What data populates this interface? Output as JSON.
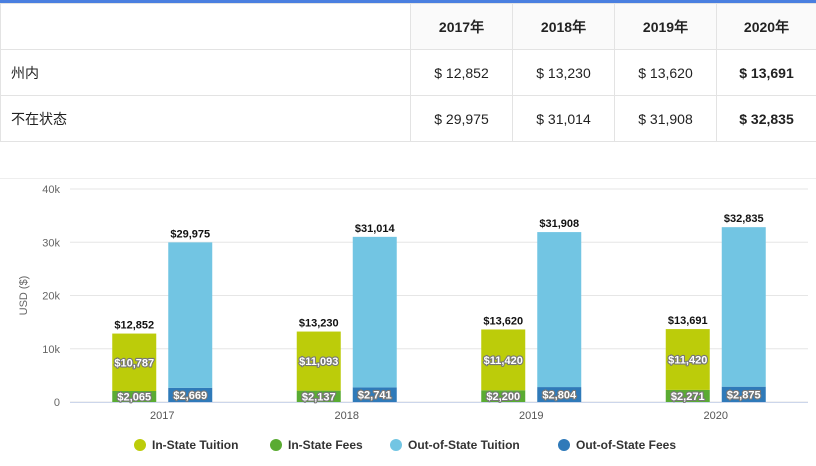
{
  "table": {
    "headers": [
      "2017年",
      "2018年",
      "2019年",
      "2020年"
    ],
    "rows": [
      {
        "label": "州内",
        "values": [
          "$ 12,852",
          "$ 13,230",
          "$ 13,620",
          "$ 13,691"
        ]
      },
      {
        "label": "不在状态",
        "values": [
          "$ 29,975",
          "$ 31,014",
          "$ 31,908",
          "$ 32,835"
        ]
      }
    ]
  },
  "chart_data": {
    "type": "bar",
    "stacked": true,
    "categories": [
      "2017",
      "2018",
      "2019",
      "2020"
    ],
    "ylabel": "USD ($)",
    "xlabel": "",
    "ylim": [
      0,
      40000
    ],
    "yticks": [
      0,
      10000,
      20000,
      30000,
      40000
    ],
    "ytick_labels": [
      "0",
      "10k",
      "20k",
      "30k",
      "40k"
    ],
    "grid": true,
    "legend_position": "bottom",
    "stacks": [
      {
        "stack": "in-state",
        "total_labels": [
          "$12,852",
          "$13,230",
          "$13,620",
          "$13,691"
        ],
        "series": [
          {
            "name": "In-State Fees",
            "color": "#5aab32",
            "values": [
              2065,
              2137,
              2200,
              2271
            ],
            "labels": [
              "$2,065",
              "$2,137",
              "$2,200",
              "$2,271"
            ]
          },
          {
            "name": "In-State Tuition",
            "color": "#bccc0a",
            "values": [
              10787,
              11093,
              11420,
              11420
            ],
            "labels": [
              "$10,787",
              "$11,093",
              "$11,420",
              "$11,420"
            ]
          }
        ]
      },
      {
        "stack": "out-of-state",
        "total_labels": [
          "$29,975",
          "$31,014",
          "$31,908",
          "$32,835"
        ],
        "series": [
          {
            "name": "Out-of-State Fees",
            "color": "#2f7ab9",
            "values": [
              2669,
              2741,
              2804,
              2875
            ],
            "labels": [
              "$2,669",
              "$2,741",
              "$2,804",
              "$2,875"
            ]
          },
          {
            "name": "Out-of-State Tuition",
            "color": "#72c5e3",
            "values": [
              27306,
              28273,
              29104,
              29960
            ],
            "labels": []
          }
        ]
      }
    ],
    "legend": [
      {
        "name": "In-State Tuition",
        "color": "#bccc0a"
      },
      {
        "name": "In-State Fees",
        "color": "#5aab32"
      },
      {
        "name": "Out-of-State Tuition",
        "color": "#72c5e3"
      },
      {
        "name": "Out-of-State Fees",
        "color": "#2f7ab9"
      }
    ]
  }
}
